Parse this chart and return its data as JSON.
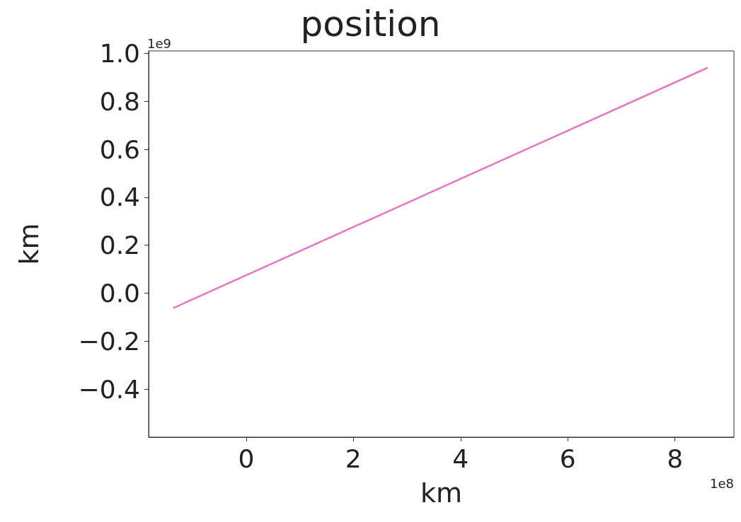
{
  "chart_data": {
    "type": "line",
    "title": "position",
    "xlabel": "km",
    "ylabel": "km",
    "x": [
      -1.36,
      8.61
    ],
    "series": [
      {
        "color": "#e377c2",
        "values": [
          -0.062,
          0.94
        ]
      }
    ],
    "xlim": [
      -1.82,
      9.1
    ],
    "xticks": [
      0,
      2,
      4,
      6,
      8
    ],
    "ylim": [
      -0.6,
      1.01
    ],
    "yticks": [
      {
        "value": -0.4,
        "label": "−0.4"
      },
      {
        "value": -0.2,
        "label": "−0.2"
      },
      {
        "value": 0,
        "label": "0.0"
      },
      {
        "value": 0.2,
        "label": "0.2"
      },
      {
        "value": 0.4,
        "label": "0.4"
      },
      {
        "value": 0.6,
        "label": "0.6"
      },
      {
        "value": 0.8,
        "label": "0.8"
      },
      {
        "value": 1,
        "label": "1.0"
      }
    ],
    "annotations": [
      "1e9",
      "1e8"
    ],
    "grid": false,
    "marker": "none",
    "line_style": "solid"
  }
}
